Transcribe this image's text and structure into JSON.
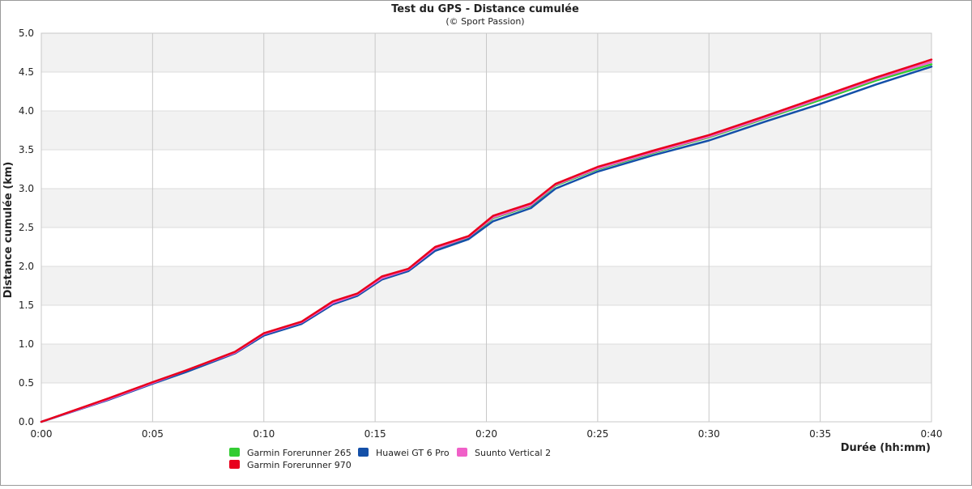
{
  "chart_data": {
    "type": "line",
    "title": "Test du GPS - Distance cumulée",
    "subtitle": "(© Sport Passion)",
    "xlabel": "Durée (hh:mm)",
    "ylabel": "Distance cumulée (km)",
    "xlim": [
      0,
      40
    ],
    "ylim": [
      0,
      5
    ],
    "grid": true,
    "legend_position": "bottom",
    "x_ticks": [
      {
        "value": 0,
        "label": "0:00"
      },
      {
        "value": 5,
        "label": "0:05"
      },
      {
        "value": 10,
        "label": "0:10"
      },
      {
        "value": 15,
        "label": "0:15"
      },
      {
        "value": 20,
        "label": "0:20"
      },
      {
        "value": 25,
        "label": "0:25"
      },
      {
        "value": 30,
        "label": "0:30"
      },
      {
        "value": 35,
        "label": "0:35"
      },
      {
        "value": 40,
        "label": "0:40"
      }
    ],
    "y_ticks": [
      {
        "value": 0,
        "label": "0.0"
      },
      {
        "value": 0.5,
        "label": "0.5"
      },
      {
        "value": 1,
        "label": "1.0"
      },
      {
        "value": 1.5,
        "label": "1.5"
      },
      {
        "value": 2,
        "label": "2.0"
      },
      {
        "value": 2.5,
        "label": "2.5"
      },
      {
        "value": 3,
        "label": "3.0"
      },
      {
        "value": 3.5,
        "label": "3.5"
      },
      {
        "value": 4,
        "label": "4.0"
      },
      {
        "value": 4.5,
        "label": "4.5"
      },
      {
        "value": 5,
        "label": "5.0"
      }
    ],
    "x": [
      0,
      3,
      5,
      6.5,
      8.7,
      10,
      11.7,
      13.1,
      14.2,
      15.3,
      16.5,
      17.7,
      19.2,
      20.3,
      22,
      23.1,
      25,
      27.5,
      30,
      32.5,
      35,
      37.5,
      40
    ],
    "series": [
      {
        "name": "Garmin Forerunner 265",
        "color": "#33cc33",
        "values": [
          0,
          0.29,
          0.5,
          0.65,
          0.89,
          1.13,
          1.28,
          1.53,
          1.64,
          1.85,
          1.96,
          2.23,
          2.37,
          2.62,
          2.78,
          3.04,
          3.25,
          3.46,
          3.66,
          3.9,
          4.14,
          4.39,
          4.6
        ]
      },
      {
        "name": "Huawei GT 6 Pro",
        "color": "#1450a8",
        "values": [
          0,
          0.28,
          0.49,
          0.64,
          0.88,
          1.11,
          1.26,
          1.51,
          1.62,
          1.83,
          1.94,
          2.2,
          2.35,
          2.58,
          2.75,
          3.0,
          3.22,
          3.43,
          3.62,
          3.86,
          4.09,
          4.34,
          4.57
        ]
      },
      {
        "name": "Suunto Vertical 2",
        "color": "#f060c8",
        "values": [
          0,
          0.29,
          0.5,
          0.66,
          0.89,
          1.13,
          1.28,
          1.53,
          1.64,
          1.85,
          1.96,
          2.23,
          2.38,
          2.63,
          2.79,
          3.05,
          3.26,
          3.47,
          3.67,
          3.91,
          4.16,
          4.41,
          4.63
        ]
      },
      {
        "name": "Garmin Forerunner 970",
        "color": "#e8001c",
        "values": [
          0,
          0.3,
          0.51,
          0.66,
          0.9,
          1.14,
          1.29,
          1.55,
          1.65,
          1.87,
          1.97,
          2.25,
          2.39,
          2.65,
          2.81,
          3.06,
          3.28,
          3.49,
          3.69,
          3.93,
          4.18,
          4.43,
          4.66
        ]
      }
    ]
  },
  "legend": {
    "items": [
      {
        "label": "Garmin Forerunner 265",
        "color": "#33cc33"
      },
      {
        "label": "Huawei GT 6 Pro",
        "color": "#1450a8"
      },
      {
        "label": "Suunto Vertical 2",
        "color": "#f060c8"
      },
      {
        "label": "Garmin Forerunner 970",
        "color": "#e8001c"
      }
    ]
  }
}
